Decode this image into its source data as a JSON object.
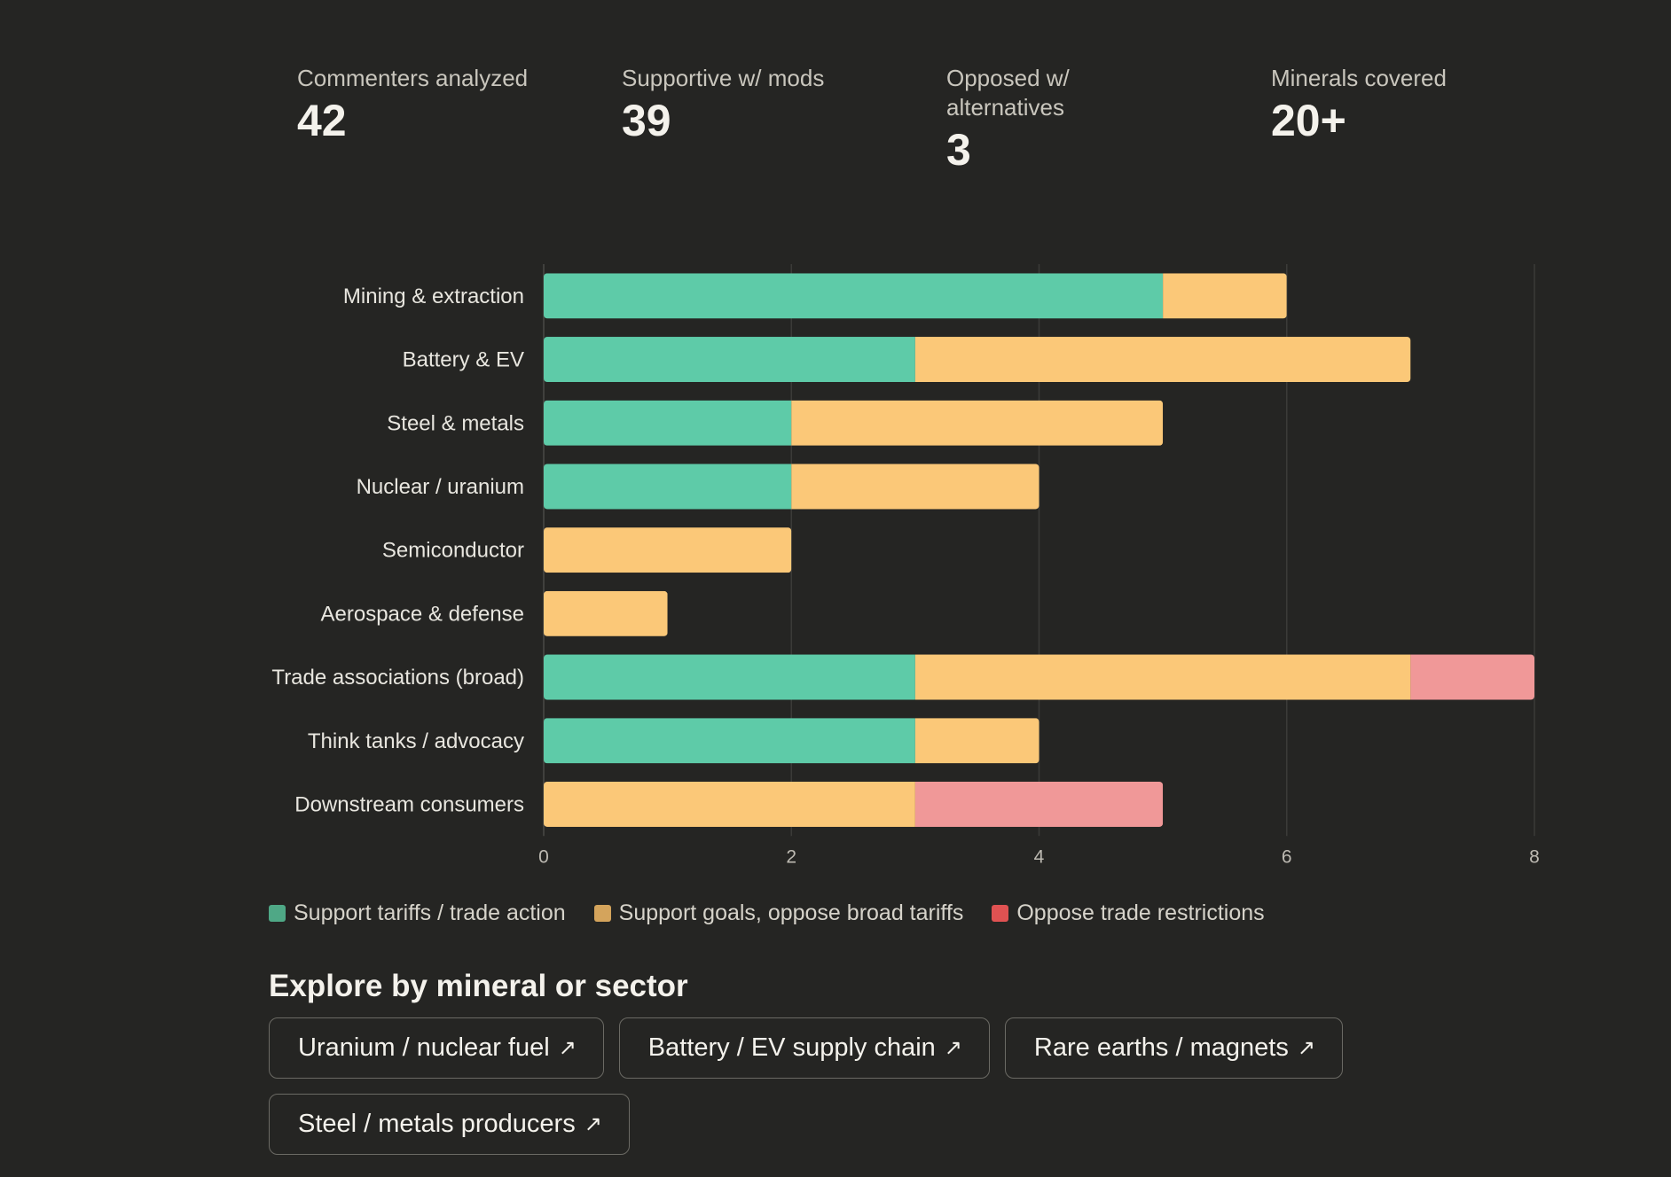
{
  "stats": [
    {
      "label": "Commenters analyzed",
      "value": "42"
    },
    {
      "label": "Supportive w/ mods",
      "value": "39"
    },
    {
      "label": "Opposed w/ alternatives",
      "value": "3"
    },
    {
      "label": "Minerals covered",
      "value": "20+"
    }
  ],
  "chart_data": {
    "type": "bar",
    "orientation": "horizontal",
    "stacked": true,
    "categories": [
      "Mining & extraction",
      "Battery & EV",
      "Steel & metals",
      "Nuclear / uranium",
      "Semiconductor",
      "Aerospace & defense",
      "Trade associations (broad)",
      "Think tanks / advocacy",
      "Downstream consumers"
    ],
    "series": [
      {
        "name": "Support tariffs / trade action",
        "color": "#5ecba8",
        "values": [
          5,
          3,
          2,
          2,
          0,
          0,
          3,
          3,
          0
        ]
      },
      {
        "name": "Support goals, oppose broad tariffs",
        "color": "#fbc878",
        "values": [
          1,
          4,
          3,
          2,
          2,
          1,
          4,
          1,
          3
        ]
      },
      {
        "name": "Oppose trade restrictions",
        "color": "#f09898",
        "values": [
          0,
          0,
          0,
          0,
          0,
          0,
          1,
          0,
          2
        ]
      }
    ],
    "xlim": [
      0,
      8
    ],
    "xticks": [
      0,
      2,
      4,
      6,
      8
    ],
    "grid": true,
    "legend_position": "bottom-left"
  },
  "legend": [
    {
      "label": "Support tariffs / trade action",
      "color": "#4fa886"
    },
    {
      "label": "Support goals, oppose broad tariffs",
      "color": "#d4a45c"
    },
    {
      "label": "Oppose trade restrictions",
      "color": "#e05252"
    }
  ],
  "explore": {
    "title": "Explore by mineral or sector",
    "arrow_icon": "arrow-up-right-icon",
    "links": [
      {
        "label": "Uranium / nuclear fuel"
      },
      {
        "label": "Battery / EV supply chain"
      },
      {
        "label": "Rare earths / magnets"
      },
      {
        "label": "Steel / metals producers"
      }
    ]
  }
}
